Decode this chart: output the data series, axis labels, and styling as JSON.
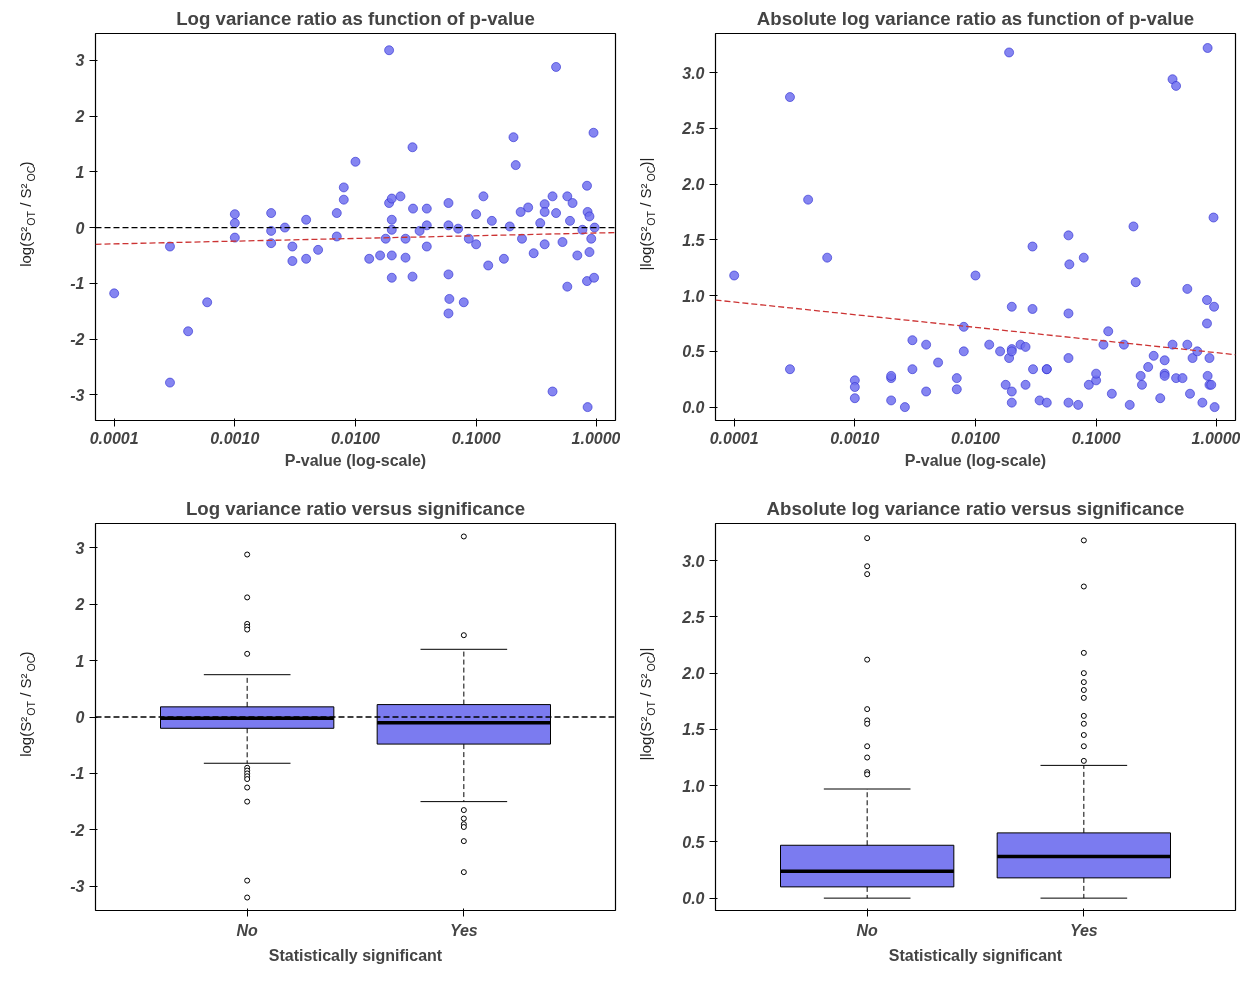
{
  "chart_data": [
    {
      "type": "scatter",
      "title": "Log variance ratio as function of p-value",
      "xlabel": "P-value (log-scale)",
      "ylabel": "log(S²$_{OT}$ / S²$_{OC}$)",
      "log": "x",
      "grid": false,
      "xlim": [
        7e-05,
        1.43
      ],
      "xticks": [
        {
          "value": 0.0001,
          "label": "0.0001"
        },
        {
          "value": 0.001,
          "label": "0.0010"
        },
        {
          "value": 0.01,
          "label": "0.0100"
        },
        {
          "value": 0.1,
          "label": "0.1000"
        },
        {
          "value": 1,
          "label": "1.0000"
        }
      ],
      "ylim": [
        -3.46,
        3.48
      ],
      "yticks": [
        -3,
        -2,
        -1,
        0,
        1,
        2,
        3
      ],
      "ref_lines": [
        {
          "axis": "y",
          "value": 0,
          "color": "#000000",
          "line_style": "dashed"
        }
      ],
      "series": [
        {
          "type": "scatter",
          "marker": "circle",
          "color": "#7070ee",
          "x": [
            0.0001,
            0.00029,
            0.00029,
            0.00041,
            0.00059,
            0.001,
            0.001,
            0.001,
            0.002,
            0.002,
            0.002,
            0.0026,
            0.003,
            0.003,
            0.0039,
            0.0039,
            0.0049,
            0.007,
            0.007,
            0.008,
            0.008,
            0.01,
            0.013,
            0.016,
            0.019,
            0.019,
            0.02,
            0.02,
            0.02,
            0.02,
            0.02,
            0.0178,
            0.0236,
            0.026,
            0.026,
            0.0297,
            0.0297,
            0.03,
            0.034,
            0.039,
            0.039,
            0.039,
            0.059,
            0.059,
            0.059,
            0.06,
            0.059,
            0.071,
            0.079,
            0.087,
            0.1,
            0.1,
            0.115,
            0.126,
            0.135,
            0.17,
            0.19,
            0.204,
            0.213,
            0.234,
            0.24,
            0.27,
            0.3,
            0.34,
            0.37,
            0.37,
            0.37,
            0.43,
            0.43,
            0.46,
            0.46,
            0.52,
            0.57,
            0.57,
            0.63,
            0.6,
            0.69,
            0.84,
            0.83,
            0.83,
            0.87,
            0.84,
            0.94,
            0.95,
            0.87,
            0.76,
            0.9,
            0.96
          ],
          "values": [
            -1.18,
            -0.34,
            -2.78,
            -1.86,
            -1.34,
            0.24,
            0.08,
            -0.18,
            0.26,
            -0.06,
            -0.28,
            0.0,
            -0.34,
            -0.6,
            0.14,
            -0.56,
            -0.4,
            0.26,
            -0.16,
            0.72,
            0.5,
            1.18,
            -0.56,
            -0.5,
            3.18,
            0.44,
            0.52,
            0.14,
            -0.04,
            -0.5,
            -0.9,
            -0.2,
            0.56,
            -0.2,
            -0.54,
            1.44,
            -0.88,
            0.34,
            -0.06,
            0.34,
            0.04,
            -0.34,
            0.44,
            0.04,
            -0.84,
            -1.28,
            -1.54,
            -0.02,
            -1.34,
            -0.2,
            0.24,
            -0.3,
            0.56,
            -0.68,
            0.12,
            -0.56,
            0.02,
            1.62,
            1.12,
            0.28,
            -0.2,
            0.36,
            -0.46,
            0.08,
            0.42,
            -0.3,
            0.28,
            -2.94,
            0.56,
            2.88,
            0.26,
            -0.26,
            -1.06,
            0.56,
            0.44,
            0.12,
            -0.5,
            -3.22,
            0.75,
            -0.96,
            -0.44,
            0.28,
            1.7,
            -0.9,
            0.2,
            -0.04,
            -0.2,
            0.0
          ]
        },
        {
          "type": "line",
          "color": "#cc3333",
          "line_style": "dashed",
          "x": [
            7e-05,
            1.43
          ],
          "values": [
            -0.3,
            -0.09
          ]
        }
      ]
    },
    {
      "type": "scatter",
      "title": "Absolute log variance ratio as function of p-value",
      "xlabel": "P-value (log-scale)",
      "ylabel": "|log(S²$_{OT}$ / S²$_{OC}$)|",
      "log": "x",
      "grid": false,
      "xlim": [
        7e-05,
        1.43
      ],
      "xticks": [
        {
          "value": 0.0001,
          "label": "0.0001"
        },
        {
          "value": 0.001,
          "label": "0.0010"
        },
        {
          "value": 0.01,
          "label": "0.0100"
        },
        {
          "value": 0.1,
          "label": "0.1000"
        },
        {
          "value": 1,
          "label": "1.0000"
        }
      ],
      "ylim": [
        -0.12,
        3.35
      ],
      "yticks": [
        {
          "value": 0,
          "label": "0.0"
        },
        {
          "value": 0.5,
          "label": "0.5"
        },
        {
          "value": 1,
          "label": "1.0"
        },
        {
          "value": 1.5,
          "label": "1.5"
        },
        {
          "value": 2,
          "label": "2.0"
        },
        {
          "value": 2.5,
          "label": "2.5"
        },
        {
          "value": 3,
          "label": "3.0"
        }
      ],
      "series": [
        {
          "type": "scatter",
          "marker": "circle",
          "color": "#7070ee",
          "x": [
            0.0001,
            0.00029,
            0.00029,
            0.00041,
            0.00059,
            0.001,
            0.001,
            0.001,
            0.002,
            0.002,
            0.002,
            0.0026,
            0.003,
            0.003,
            0.0039,
            0.0039,
            0.0049,
            0.007,
            0.007,
            0.008,
            0.008,
            0.01,
            0.013,
            0.016,
            0.019,
            0.019,
            0.02,
            0.02,
            0.02,
            0.02,
            0.02,
            0.0178,
            0.0236,
            0.026,
            0.026,
            0.0297,
            0.0297,
            0.03,
            0.034,
            0.039,
            0.039,
            0.039,
            0.059,
            0.059,
            0.059,
            0.06,
            0.059,
            0.071,
            0.079,
            0.087,
            0.1,
            0.1,
            0.115,
            0.126,
            0.135,
            0.17,
            0.19,
            0.204,
            0.213,
            0.234,
            0.24,
            0.27,
            0.3,
            0.34,
            0.37,
            0.37,
            0.37,
            0.43,
            0.43,
            0.46,
            0.46,
            0.52,
            0.57,
            0.57,
            0.63,
            0.6,
            0.69,
            0.84,
            0.83,
            0.83,
            0.87,
            0.84,
            0.94,
            0.95,
            0.87,
            0.76,
            0.9,
            0.96
          ],
          "values": [
            1.18,
            0.34,
            2.78,
            1.86,
            1.34,
            0.24,
            0.08,
            0.18,
            0.26,
            0.06,
            0.28,
            0.0,
            0.34,
            0.6,
            0.14,
            0.56,
            0.4,
            0.26,
            0.16,
            0.72,
            0.5,
            1.18,
            0.56,
            0.5,
            3.18,
            0.44,
            0.52,
            0.14,
            0.04,
            0.5,
            0.9,
            0.2,
            0.56,
            0.2,
            0.54,
            1.44,
            0.88,
            0.34,
            0.06,
            0.34,
            0.04,
            0.34,
            0.44,
            0.04,
            0.84,
            1.28,
            1.54,
            0.02,
            1.34,
            0.2,
            0.24,
            0.3,
            0.56,
            0.68,
            0.12,
            0.56,
            0.02,
            1.62,
            1.12,
            0.28,
            0.2,
            0.36,
            0.46,
            0.08,
            0.42,
            0.3,
            0.28,
            2.94,
            0.56,
            2.88,
            0.26,
            0.26,
            1.06,
            0.56,
            0.44,
            0.12,
            0.5,
            3.22,
            0.75,
            0.96,
            0.44,
            0.28,
            1.7,
            0.9,
            0.2,
            0.04,
            0.2,
            0.0
          ]
        },
        {
          "type": "line",
          "color": "#cc3333",
          "line_style": "dashed",
          "x": [
            7e-05,
            1.43
          ],
          "values": [
            0.96,
            0.47
          ]
        }
      ]
    },
    {
      "type": "box",
      "title": "Log variance ratio versus significance",
      "xlabel": "Statistically significant",
      "ylabel": "log(S²$_{OT}$ / S²$_{OC}$)",
      "grid": false,
      "categories": [
        "No",
        "Yes"
      ],
      "ylim": [
        -3.43,
        3.43
      ],
      "yticks": [
        -3,
        -2,
        -1,
        0,
        1,
        2,
        3
      ],
      "ref_lines": [
        {
          "axis": "y",
          "value": 0,
          "color": "#000000",
          "line_style": "dashed"
        }
      ],
      "series": [
        {
          "color": "#7b7bf0",
          "boxes": [
            {
              "low": -0.82,
              "q1": -0.2,
              "median": -0.02,
              "q3": 0.18,
              "high": 0.75,
              "outliers": [
                2.88,
                2.12,
                1.65,
                1.6,
                1.55,
                1.12,
                -0.9,
                -0.95,
                -1.0,
                -1.05,
                -1.1,
                -1.25,
                -1.5,
                -2.9,
                -3.2
              ]
            },
            {
              "low": -1.5,
              "q1": -0.48,
              "median": -0.1,
              "q3": 0.22,
              "high": 1.2,
              "outliers": [
                3.2,
                1.45,
                -1.65,
                -1.8,
                -1.9,
                -1.95,
                -2.2,
                -2.75
              ]
            }
          ]
        }
      ]
    },
    {
      "type": "box",
      "title": "Absolute log variance ratio versus significance",
      "xlabel": "Statistically significant",
      "ylabel": "|log(S²$_{OT}$ / S²$_{OC}$)|",
      "grid": false,
      "categories": [
        "No",
        "Yes"
      ],
      "ylim": [
        -0.11,
        3.33
      ],
      "yticks": [
        {
          "value": 0,
          "label": "0.0"
        },
        {
          "value": 0.5,
          "label": "0.5"
        },
        {
          "value": 1,
          "label": "1.0"
        },
        {
          "value": 1.5,
          "label": "1.5"
        },
        {
          "value": 2,
          "label": "2.0"
        },
        {
          "value": 2.5,
          "label": "2.5"
        },
        {
          "value": 3,
          "label": "3.0"
        }
      ],
      "series": [
        {
          "color": "#7b7bf0",
          "boxes": [
            {
              "low": 0,
              "q1": 0.1,
              "median": 0.24,
              "q3": 0.47,
              "high": 0.97,
              "outliers": [
                3.2,
                2.95,
                2.88,
                2.12,
                1.68,
                1.58,
                1.55,
                1.35,
                1.25,
                1.12,
                1.1
              ]
            },
            {
              "low": 0,
              "q1": 0.18,
              "median": 0.37,
              "q3": 0.58,
              "high": 1.18,
              "outliers": [
                3.18,
                2.77,
                2.18,
                2.0,
                1.92,
                1.85,
                1.78,
                1.62,
                1.55,
                1.45,
                1.35,
                1.22
              ]
            }
          ]
        }
      ]
    }
  ]
}
